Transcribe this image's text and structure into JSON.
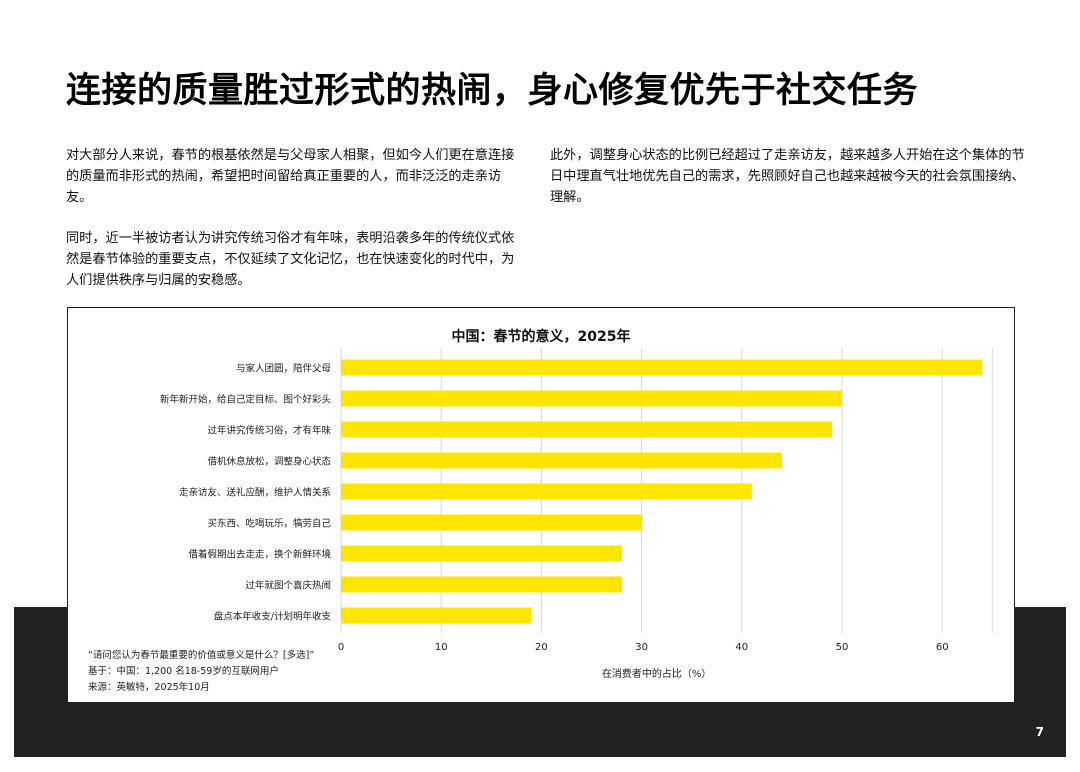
{
  "headline": "连接的质量胜过形式的热闹，身心修复优先于社交任务",
  "left_paragraphs": [
    "对大部分人来说，春节的根基依然是与父母家人相聚，但如今人们更在意连接的质量而非形式的热闹，希望把时间留给真正重要的人，而非泛泛的走亲访友。",
    "同时，近一半被访者认为讲究传统习俗才有年味，表明沿袭多年的传统仪式依然是春节体验的重要支点，不仅延续了文化记忆，也在快速变化的时代中，为人们提供秩序与归属的安稳感。"
  ],
  "right_paragraphs": [
    "此外，调整身心状态的比例已经超过了走亲访友，越来越多人开始在这个集体的节日中理直气壮地优先自己的需求，先照顾好自己也越来越被今天的社会氛围接纳、理解。"
  ],
  "chart_data": {
    "type": "bar",
    "orientation": "horizontal",
    "title": "中国：春节的意义，2025年",
    "xlabel": "在消费者中的占比（%）",
    "ylabel": "",
    "categories": [
      "与家人团圆，陪伴父母",
      "新年新开始，给自己定目标、图个好彩头",
      "过年讲究传统习俗，才有年味",
      "借机休息放松，调整身心状态",
      "走亲访友、送礼应酬，维护人情关系",
      "买东西、吃喝玩乐，犒劳自己",
      "借着假期出去走走，换个新鲜环境",
      "过年就图个喜庆热闹",
      "盘点本年收支/计划明年收支"
    ],
    "values": [
      64,
      50,
      49,
      44,
      41,
      30,
      28,
      28,
      19
    ],
    "xlim": [
      0,
      65
    ],
    "xticks": [
      "0",
      "10",
      "20",
      "30",
      "40",
      "50",
      "60"
    ],
    "grid": true,
    "bar_color": "#FFE500"
  },
  "footnotes": [
    "“请问您认为春节最重要的价值或意义是什么？[多选]”",
    "基于：中国：1,200 名18-59岁的互联网用户",
    "来源：英敏特，2025年10月"
  ],
  "page_number": "7"
}
